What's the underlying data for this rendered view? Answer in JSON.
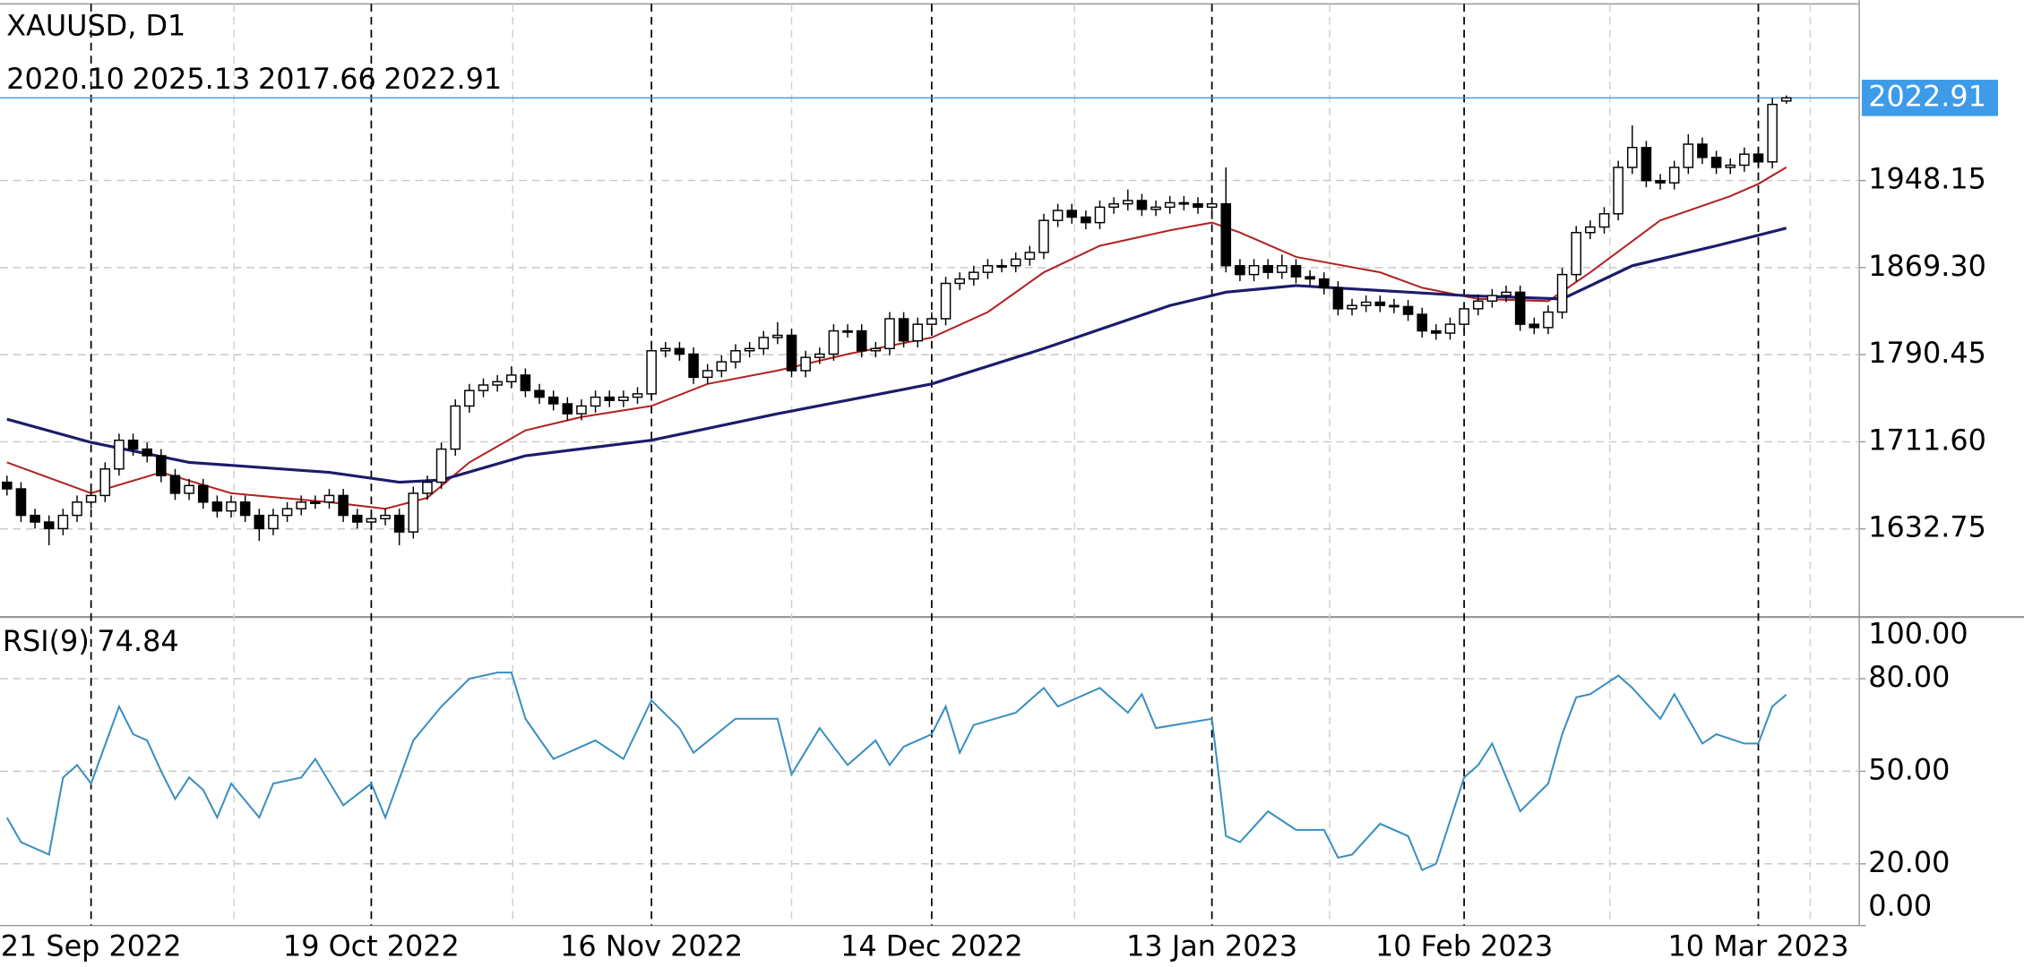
{
  "chart_data": {
    "type": "candlestick",
    "title": "XAUUSD, D1",
    "ohlc_labels": [
      "2020.10",
      "2025.13",
      "2017.66",
      "2022.91"
    ],
    "open": [
      1675,
      1669,
      1645,
      1639,
      1633,
      1645,
      1657,
      1663,
      1687,
      1713,
      1705,
      1699,
      1681,
      1665,
      1672,
      1657,
      1649,
      1657,
      1645,
      1633,
      1645,
      1651,
      1657,
      1657,
      1663,
      1645,
      1639,
      1642,
      1645,
      1630,
      1665,
      1675,
      1705,
      1744,
      1758,
      1763,
      1766,
      1772,
      1758,
      1752,
      1746,
      1737,
      1744,
      1752,
      1749,
      1752,
      1755,
      1794,
      1796,
      1791,
      1770,
      1776,
      1784,
      1794,
      1796,
      1806,
      1808,
      1776,
      1788,
      1791,
      1812,
      1812,
      1794,
      1796,
      1823,
      1803,
      1818,
      1823,
      1855,
      1859,
      1865,
      1871,
      1871,
      1877,
      1883,
      1912,
      1921,
      1915,
      1910,
      1924,
      1927,
      1930,
      1922,
      1924,
      1928,
      1927,
      1924,
      1927,
      1871,
      1863,
      1871,
      1865,
      1871,
      1861,
      1859,
      1851,
      1832,
      1835,
      1838,
      1835,
      1834,
      1827,
      1812,
      1810,
      1818,
      1832,
      1839,
      1844,
      1847,
      1818,
      1815,
      1829,
      1863,
      1901,
      1906,
      1918,
      1960,
      1978,
      1948,
      1946,
      1960,
      1981,
      1969,
      1960,
      1962,
      1972,
      1965,
      2020.1
    ],
    "high": [
      1681,
      1675,
      1651,
      1645,
      1651,
      1663,
      1669,
      1693,
      1719,
      1719,
      1711,
      1705,
      1687,
      1678,
      1678,
      1663,
      1663,
      1663,
      1651,
      1651,
      1657,
      1663,
      1663,
      1669,
      1669,
      1651,
      1648,
      1651,
      1651,
      1671,
      1681,
      1711,
      1750,
      1764,
      1769,
      1772,
      1780,
      1778,
      1764,
      1758,
      1752,
      1750,
      1758,
      1758,
      1758,
      1761,
      1800,
      1802,
      1802,
      1797,
      1782,
      1790,
      1800,
      1802,
      1812,
      1820,
      1814,
      1794,
      1797,
      1818,
      1818,
      1818,
      1802,
      1829,
      1829,
      1824,
      1829,
      1861,
      1865,
      1871,
      1877,
      1877,
      1883,
      1889,
      1918,
      1927,
      1927,
      1921,
      1930,
      1933,
      1940,
      1936,
      1930,
      1934,
      1934,
      1933,
      1933,
      1960,
      1877,
      1877,
      1877,
      1881,
      1877,
      1867,
      1865,
      1857,
      1841,
      1844,
      1844,
      1841,
      1840,
      1833,
      1818,
      1824,
      1838,
      1845,
      1850,
      1853,
      1853,
      1824,
      1835,
      1869,
      1907,
      1912,
      1924,
      1966,
      1998,
      1984,
      1954,
      1966,
      1990,
      1987,
      1975,
      1968,
      1978,
      1978,
      2023,
      2025.13
    ],
    "low": [
      1663,
      1639,
      1633,
      1618,
      1627,
      1639,
      1651,
      1657,
      1681,
      1699,
      1693,
      1675,
      1659,
      1659,
      1651,
      1643,
      1643,
      1639,
      1622,
      1627,
      1639,
      1645,
      1651,
      1651,
      1639,
      1633,
      1633,
      1636,
      1618,
      1624,
      1659,
      1669,
      1699,
      1738,
      1752,
      1757,
      1760,
      1752,
      1746,
      1740,
      1731,
      1731,
      1738,
      1743,
      1743,
      1746,
      1749,
      1788,
      1785,
      1764,
      1764,
      1770,
      1778,
      1788,
      1790,
      1800,
      1770,
      1770,
      1782,
      1785,
      1806,
      1788,
      1788,
      1790,
      1797,
      1797,
      1812,
      1817,
      1849,
      1853,
      1859,
      1865,
      1865,
      1871,
      1877,
      1906,
      1909,
      1904,
      1904,
      1918,
      1921,
      1916,
      1916,
      1918,
      1921,
      1918,
      1918,
      1865,
      1857,
      1857,
      1859,
      1859,
      1855,
      1853,
      1845,
      1826,
      1826,
      1829,
      1829,
      1828,
      1821,
      1806,
      1804,
      1804,
      1812,
      1826,
      1833,
      1838,
      1812,
      1809,
      1809,
      1823,
      1857,
      1895,
      1900,
      1912,
      1954,
      1942,
      1940,
      1940,
      1954,
      1963,
      1954,
      1954,
      1956,
      1959,
      1959,
      2017.66
    ],
    "close": [
      1669,
      1645,
      1639,
      1633,
      1645,
      1657,
      1663,
      1687,
      1713,
      1705,
      1699,
      1681,
      1665,
      1672,
      1657,
      1649,
      1657,
      1645,
      1633,
      1645,
      1651,
      1657,
      1657,
      1663,
      1645,
      1639,
      1642,
      1645,
      1630,
      1665,
      1675,
      1705,
      1744,
      1758,
      1763,
      1766,
      1772,
      1758,
      1752,
      1746,
      1737,
      1744,
      1752,
      1749,
      1752,
      1755,
      1794,
      1796,
      1791,
      1770,
      1776,
      1784,
      1794,
      1796,
      1806,
      1808,
      1776,
      1788,
      1791,
      1812,
      1812,
      1794,
      1796,
      1823,
      1803,
      1818,
      1823,
      1855,
      1859,
      1865,
      1871,
      1871,
      1877,
      1883,
      1912,
      1921,
      1915,
      1910,
      1924,
      1927,
      1930,
      1922,
      1924,
      1928,
      1927,
      1924,
      1927,
      1871,
      1863,
      1871,
      1865,
      1871,
      1861,
      1859,
      1851,
      1832,
      1835,
      1838,
      1835,
      1834,
      1827,
      1812,
      1810,
      1818,
      1832,
      1839,
      1844,
      1847,
      1818,
      1815,
      1829,
      1863,
      1901,
      1906,
      1918,
      1960,
      1978,
      1948,
      1946,
      1960,
      1981,
      1969,
      1960,
      1962,
      1972,
      1965,
      2017,
      2022.91
    ],
    "up_color": "#ffffff",
    "down_color": "#000000",
    "xlim": [
      -0.5,
      132.2
    ],
    "xticks": [
      {
        "value": 6,
        "label": "21 Sep 2022"
      },
      {
        "value": 26,
        "label": "19 Oct 2022"
      },
      {
        "value": 46,
        "label": "16 Nov 2022"
      },
      {
        "value": 66,
        "label": "14 Dec 2022"
      },
      {
        "value": 86,
        "label": "13 Jan 2023"
      },
      {
        "value": 104,
        "label": "10 Feb 2023"
      },
      {
        "value": 125,
        "label": "10 Mar 2023"
      }
    ],
    "xgrid": [
      16.2,
      36.1,
      56,
      76.2,
      94.4,
      114.4,
      128.7
    ],
    "ylim": [
      1553,
      2108
    ],
    "yticks": [
      {
        "value": 1632.75,
        "label": "1632.75"
      },
      {
        "value": 1711.6,
        "label": "1711.60"
      },
      {
        "value": 1790.45,
        "label": "1790.45"
      },
      {
        "value": 1869.3,
        "label": "1869.30"
      },
      {
        "value": 1948.15,
        "label": "1948.15"
      }
    ],
    "grid": true,
    "last_price": {
      "value": 2022.91,
      "label": "2022.91"
    },
    "last_price_color": "#3d9be9",
    "ma_lines": [
      {
        "color": "#b22222",
        "x": [
          0,
          6,
          11,
          16,
          23,
          27,
          30,
          33,
          37,
          41,
          46,
          50,
          55,
          60,
          66,
          70,
          74,
          78,
          83,
          86,
          88,
          92,
          98,
          101,
          105,
          110,
          113,
          118,
          123,
          125,
          127
        ],
        "values": [
          1693,
          1665,
          1684,
          1665,
          1657,
          1651,
          1661,
          1693,
          1722,
          1734,
          1744,
          1764,
          1776,
          1791,
          1806,
          1829,
          1865,
          1889,
          1903,
          1910,
          1901,
          1879,
          1865,
          1851,
          1841,
          1839,
          1865,
          1912,
          1934,
          1945,
          1960
        ]
      },
      {
        "color": "#1c1c6b",
        "x": [
          0,
          6,
          13,
          23,
          28,
          31,
          37,
          46,
          55,
          66,
          74,
          83,
          87,
          92,
          100,
          104,
          111,
          116,
          122,
          127
        ],
        "values": [
          1732,
          1711,
          1693,
          1684,
          1675,
          1677,
          1699,
          1713,
          1737,
          1764,
          1796,
          1835,
          1847,
          1853,
          1847,
          1844,
          1841,
          1871,
          1889,
          1905
        ]
      }
    ],
    "rsi": {
      "name": "RSI(9)",
      "color": "#3a8fc0",
      "ylim": [
        0,
        100
      ],
      "yticks": [
        {
          "value": 100,
          "label": "100.00"
        },
        {
          "value": 80,
          "label": "80.00"
        },
        {
          "value": 50,
          "label": "50.00"
        },
        {
          "value": 20,
          "label": "20.00"
        },
        {
          "value": 0,
          "label": "0.00"
        }
      ],
      "x": [
        0,
        1,
        3,
        4,
        5,
        6,
        8,
        9,
        10,
        11,
        12,
        13,
        14,
        15,
        16,
        18,
        19,
        21,
        22,
        24,
        26,
        27,
        29,
        31,
        33,
        35,
        36,
        37,
        39,
        42,
        44,
        46,
        48,
        49,
        52,
        55,
        56,
        58,
        60,
        62,
        63,
        64,
        66,
        67,
        68,
        69,
        72,
        74,
        75,
        78,
        80,
        81,
        82,
        86,
        87,
        88,
        90,
        92,
        94,
        95,
        96,
        98,
        100,
        101,
        102,
        104,
        105,
        106,
        108,
        110,
        111,
        112,
        113,
        115,
        116,
        118,
        119,
        121,
        122,
        124,
        125,
        126,
        127
      ],
      "values": [
        35,
        27,
        23,
        48,
        52,
        46,
        71,
        62,
        60,
        50,
        41,
        48,
        44,
        35,
        46,
        35,
        46,
        48,
        54,
        39,
        46,
        35,
        60,
        71,
        80,
        82,
        82,
        67,
        54,
        60,
        54,
        73,
        64,
        56,
        67,
        67,
        49,
        64,
        52,
        60,
        52,
        58,
        62,
        71,
        56,
        65,
        69,
        77,
        71,
        77,
        69,
        75,
        64,
        67,
        29,
        27,
        37,
        31,
        31,
        22,
        23,
        33,
        29,
        18,
        20,
        48,
        52,
        59,
        37,
        46,
        62,
        74,
        75,
        81,
        77,
        67,
        75,
        59,
        62,
        59,
        59,
        71,
        74.84
      ]
    }
  }
}
